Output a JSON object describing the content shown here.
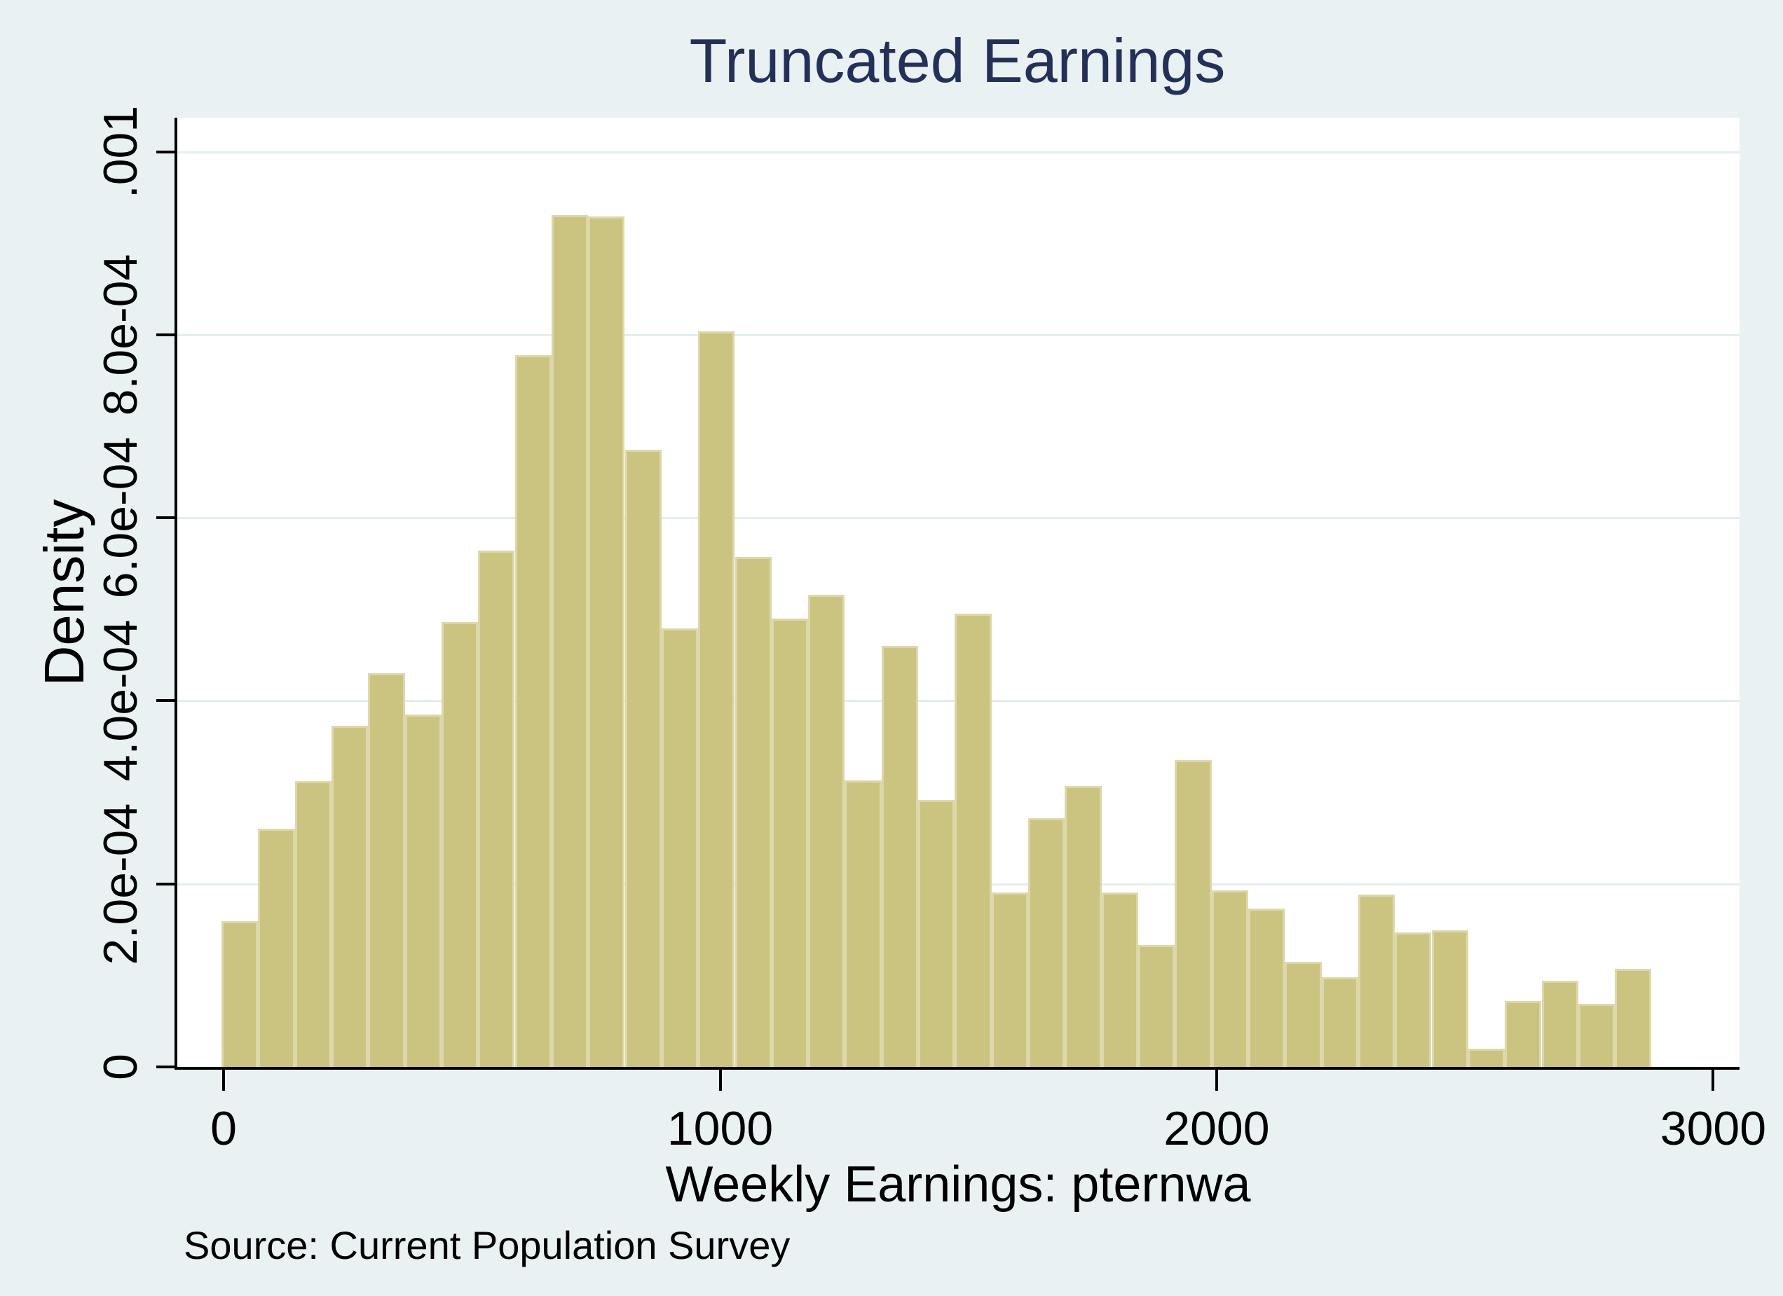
{
  "title": {
    "text": "Truncated Earnings"
  },
  "y_axis": {
    "title": "Density",
    "ticks": [
      {
        "label": ".001",
        "value": 0.001
      },
      {
        "label": "8.0e-04",
        "value": 0.0008
      },
      {
        "label": "6.0e-04",
        "value": 0.0006
      },
      {
        "label": "4.0e-04",
        "value": 0.0004
      },
      {
        "label": "2.0e-04",
        "value": 0.0002
      },
      {
        "label": "0",
        "value": 0
      }
    ]
  },
  "x_axis": {
    "title": "Weekly Earnings: pternwa",
    "ticks": [
      {
        "label": "0",
        "value": 0
      },
      {
        "label": "1000",
        "value": 1000
      },
      {
        "label": "2000",
        "value": 2000
      },
      {
        "label": "3000",
        "value": 3000
      }
    ]
  },
  "note": {
    "text": "Source: Current Population Survey"
  },
  "colors": {
    "background": "#eaf1f3",
    "plot_background": "#ffffff",
    "gridline": "#e4eef0",
    "bar_fill": "#cbc380",
    "bar_edge": "#dcd8aa",
    "axis": "#000000",
    "title_text": "#233158",
    "text": "#000000"
  },
  "chart_data": {
    "type": "bar",
    "variant": "histogram",
    "title": "Truncated Earnings",
    "xlabel": "Weekly Earnings: pternwa",
    "ylabel": "Density",
    "annotation": "Source: Current Population Survey",
    "bin_start": 0,
    "bin_width": 73.85,
    "n_bins": 39,
    "x_tick_values": [
      0,
      1000,
      2000,
      3000
    ],
    "y_tick_values": [
      0,
      0.0002,
      0.0004,
      0.0006,
      0.0008,
      0.001
    ],
    "y_tick_labels": [
      "0",
      "2.0e-04",
      "4.0e-04",
      "6.0e-04",
      "8.0e-04",
      ".001"
    ],
    "xlim": [
      -95,
      3055
    ],
    "ylim": [
      0,
      0.001037
    ],
    "grid": true,
    "legend": false,
    "densities": [
      0.000159,
      0.00026,
      0.000312,
      0.000373,
      0.00043,
      0.000385,
      0.000486,
      0.000564,
      0.000778,
      0.000931,
      0.000929,
      0.000674,
      0.000479,
      0.000804,
      0.000557,
      0.00049,
      0.000516,
      0.000313,
      0.00046,
      0.000292,
      0.000495,
      0.000191,
      0.000272,
      0.000307,
      0.000191,
      0.000133,
      0.000335,
      0.000193,
      0.000173,
      0.000115,
      9.8e-05,
      0.000188,
      0.000147,
      0.000149,
      2e-05,
      7.2e-05,
      9.4e-05,
      6.9e-05,
      0.000107
    ]
  }
}
